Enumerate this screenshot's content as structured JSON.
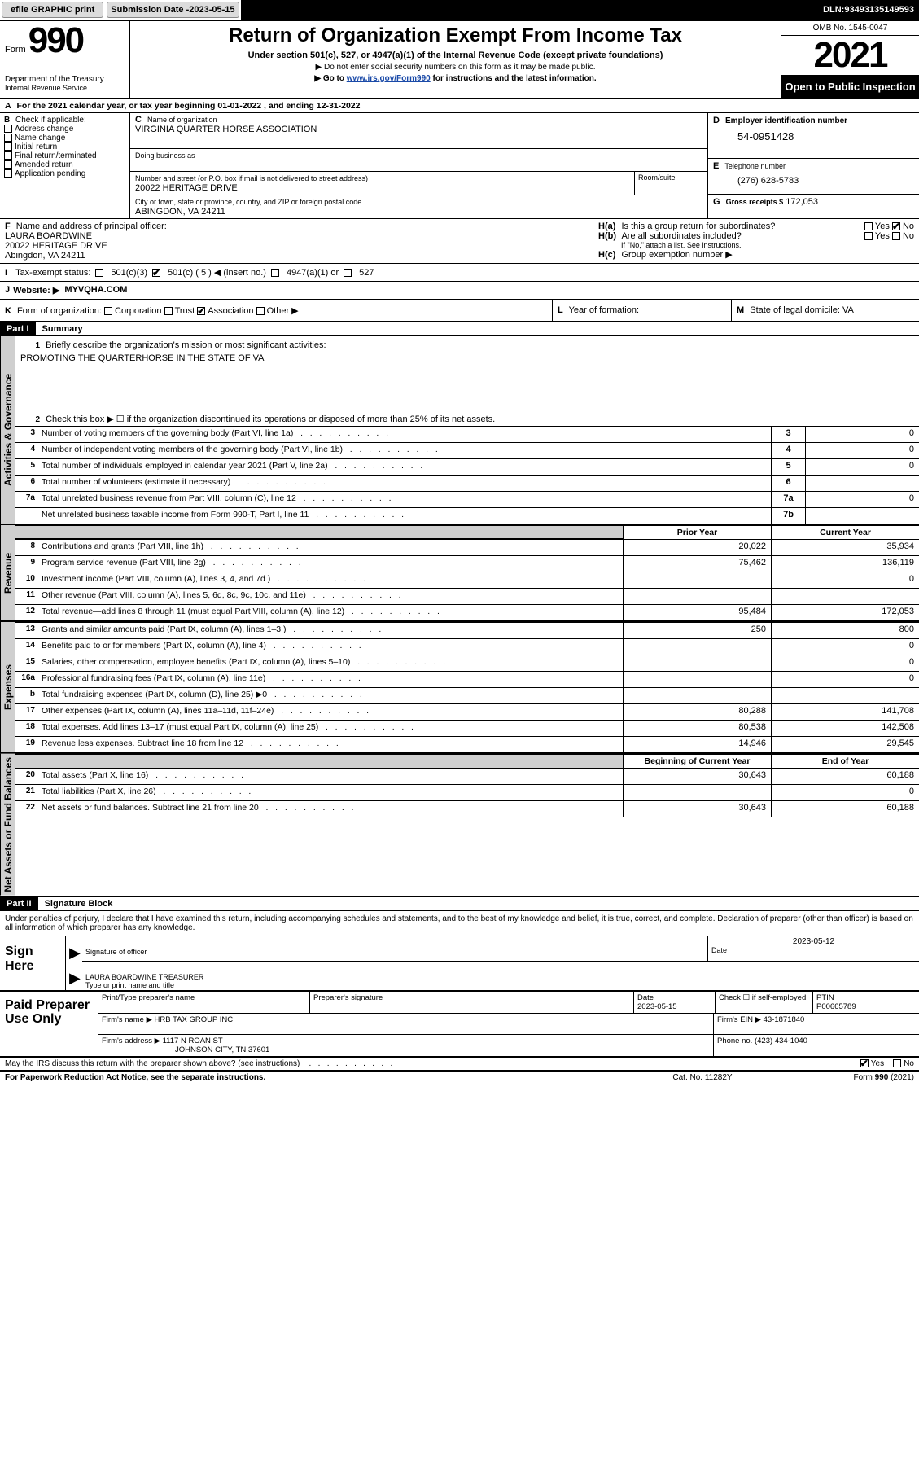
{
  "topbar": {
    "efile": "efile GRAPHIC print",
    "submission_label": "Submission Date - ",
    "submission_date": "2023-05-15",
    "dln_label": "DLN: ",
    "dln": "93493135149593"
  },
  "header": {
    "form_word": "Form",
    "form_num": "990",
    "dept": "Department of the Treasury",
    "irs": "Internal Revenue Service",
    "title": "Return of Organization Exempt From Income Tax",
    "sub1": "Under section 501(c), 527, or 4947(a)(1) of the Internal Revenue Code (except private foundations)",
    "sub2": "▶ Do not enter social security numbers on this form as it may be made public.",
    "sub3_pre": "▶ Go to ",
    "sub3_link": "www.irs.gov/Form990",
    "sub3_post": " for instructions and the latest information.",
    "omb": "OMB No. 1545-0047",
    "year": "2021",
    "otp": "Open to Public Inspection"
  },
  "period": {
    "text_pre": "For the 2021 calendar year, or tax year beginning ",
    "begin": "01-01-2022",
    "mid": "  , and ending ",
    "end": "12-31-2022"
  },
  "boxB": {
    "label": "Check if applicable:",
    "opts": [
      "Address change",
      "Name change",
      "Initial return",
      "Final return/terminated",
      "Amended return",
      "Application pending"
    ]
  },
  "org": {
    "name_label": "Name of organization",
    "name": "VIRGINIA QUARTER HORSE ASSOCIATION",
    "dba_label": "Doing business as",
    "dba": "",
    "addr_label": "Number and street (or P.O. box if mail is not delivered to street address)",
    "addr": "20022 HERITAGE DRIVE",
    "room_label": "Room/suite",
    "city_label": "City or town, state or province, country, and ZIP or foreign postal code",
    "city": "ABINGDON, VA  24211"
  },
  "boxD": {
    "label": "Employer identification number",
    "val": "54-0951428"
  },
  "boxE": {
    "label": "Telephone number",
    "val": "(276) 628-5783"
  },
  "boxG": {
    "label": "Gross receipts $",
    "val": "172,053"
  },
  "boxF": {
    "label": "Name and address of principal officer:",
    "l1": "LAURA BOARDWINE",
    "l2": "20022 HERITAGE DRIVE",
    "l3": "Abingdon, VA  24211"
  },
  "boxH": {
    "a": "Is this a group return for subordinates?",
    "b": "Are all subordinates included?",
    "ifno": "If \"No,\" attach a list. See instructions.",
    "c": "Group exemption number ▶",
    "a_no": true
  },
  "boxI": {
    "label": "Tax-exempt status:",
    "c3": "501(c)(3)",
    "c": "501(c) ( 5 ) ◀ (insert no.)",
    "c_checked": true,
    "a1": "4947(a)(1) or",
    "527": "527"
  },
  "boxJ": {
    "label": "Website: ▶",
    "val": "MYVQHA.COM"
  },
  "boxK": {
    "label": "Form of organization:",
    "opts": [
      "Corporation",
      "Trust",
      "Association",
      "Other ▶"
    ],
    "checked_index": 2
  },
  "boxL": {
    "label": "Year of formation:",
    "val": ""
  },
  "boxM": {
    "label": "State of legal domicile:",
    "val": "VA"
  },
  "partI": {
    "hdr": "Part I",
    "title": "Summary"
  },
  "summary": {
    "q1": "Briefly describe the organization's mission or most significant activities:",
    "mission": "PROMOTING THE QUARTERHORSE IN THE STATE OF VA",
    "q2": "Check this box ▶ ☐  if the organization discontinued its operations or disposed of more than 25% of its net assets.",
    "lines_gov": [
      {
        "n": "3",
        "t": "Number of voting members of the governing body (Part VI, line 1a)",
        "box": "3",
        "v": "0"
      },
      {
        "n": "4",
        "t": "Number of independent voting members of the governing body (Part VI, line 1b)",
        "box": "4",
        "v": "0"
      },
      {
        "n": "5",
        "t": "Total number of individuals employed in calendar year 2021 (Part V, line 2a)",
        "box": "5",
        "v": "0"
      },
      {
        "n": "6",
        "t": "Total number of volunteers (estimate if necessary)",
        "box": "6",
        "v": ""
      },
      {
        "n": "7a",
        "t": "Total unrelated business revenue from Part VIII, column (C), line 12",
        "box": "7a",
        "v": "0"
      },
      {
        "n": "",
        "t": "Net unrelated business taxable income from Form 990-T, Part I, line 11",
        "box": "7b",
        "v": ""
      }
    ],
    "col_prior": "Prior Year",
    "col_current": "Current Year",
    "revenue": [
      {
        "n": "8",
        "t": "Contributions and grants (Part VIII, line 1h)",
        "p": "20,022",
        "c": "35,934"
      },
      {
        "n": "9",
        "t": "Program service revenue (Part VIII, line 2g)",
        "p": "75,462",
        "c": "136,119"
      },
      {
        "n": "10",
        "t": "Investment income (Part VIII, column (A), lines 3, 4, and 7d )",
        "p": "",
        "c": "0"
      },
      {
        "n": "11",
        "t": "Other revenue (Part VIII, column (A), lines 5, 6d, 8c, 9c, 10c, and 11e)",
        "p": "",
        "c": ""
      },
      {
        "n": "12",
        "t": "Total revenue—add lines 8 through 11 (must equal Part VIII, column (A), line 12)",
        "p": "95,484",
        "c": "172,053"
      }
    ],
    "expenses": [
      {
        "n": "13",
        "t": "Grants and similar amounts paid (Part IX, column (A), lines 1–3 )",
        "p": "250",
        "c": "800"
      },
      {
        "n": "14",
        "t": "Benefits paid to or for members (Part IX, column (A), line 4)",
        "p": "",
        "c": "0"
      },
      {
        "n": "15",
        "t": "Salaries, other compensation, employee benefits (Part IX, column (A), lines 5–10)",
        "p": "",
        "c": "0"
      },
      {
        "n": "16a",
        "t": "Professional fundraising fees (Part IX, column (A), line 11e)",
        "p": "",
        "c": "0"
      },
      {
        "n": "b",
        "t": "Total fundraising expenses (Part IX, column (D), line 25) ▶0",
        "p": "__shade__",
        "c": "__shade__"
      },
      {
        "n": "17",
        "t": "Other expenses (Part IX, column (A), lines 11a–11d, 11f–24e)",
        "p": "80,288",
        "c": "141,708"
      },
      {
        "n": "18",
        "t": "Total expenses. Add lines 13–17 (must equal Part IX, column (A), line 25)",
        "p": "80,538",
        "c": "142,508"
      },
      {
        "n": "19",
        "t": "Revenue less expenses. Subtract line 18 from line 12",
        "p": "14,946",
        "c": "29,545"
      }
    ],
    "col_boy": "Beginning of Current Year",
    "col_eoy": "End of Year",
    "netassets": [
      {
        "n": "20",
        "t": "Total assets (Part X, line 16)",
        "p": "30,643",
        "c": "60,188"
      },
      {
        "n": "21",
        "t": "Total liabilities (Part X, line 26)",
        "p": "",
        "c": "0"
      },
      {
        "n": "22",
        "t": "Net assets or fund balances. Subtract line 21 from line 20",
        "p": "30,643",
        "c": "60,188"
      }
    ]
  },
  "partII": {
    "hdr": "Part II",
    "title": "Signature Block"
  },
  "sig": {
    "jurat": "Under penalties of perjury, I declare that I have examined this return, including accompanying schedules and statements, and to the best of my knowledge and belief, it is true, correct, and complete. Declaration of preparer (other than officer) is based on all information of which preparer has any knowledge.",
    "sign_here": "Sign Here",
    "sig_label": "Signature of officer",
    "date_label": "Date",
    "date_val": "2023-05-12",
    "name_title": "LAURA BOARDWINE  TREASURER",
    "name_label": "Type or print name and title"
  },
  "paid": {
    "label": "Paid Preparer Use Only",
    "h_name": "Print/Type preparer's name",
    "h_sig": "Preparer's signature",
    "h_date": "Date",
    "date": "2023-05-15",
    "h_self": "Check ☐ if self-employed",
    "h_ptin": "PTIN",
    "ptin": "P00665789",
    "firm_name_l": "Firm's name   ▶",
    "firm_name": "HRB TAX GROUP INC",
    "firm_ein_l": "Firm's EIN ▶",
    "firm_ein": "43-1871840",
    "firm_addr_l": "Firm's address ▶",
    "firm_addr1": "1117 N ROAN ST",
    "firm_addr2": "JOHNSON CITY, TN  37601",
    "phone_l": "Phone no.",
    "phone": "(423) 434-1040"
  },
  "discuss": {
    "q": "May the IRS discuss this return with the preparer shown above? (see instructions)",
    "yes_checked": true
  },
  "footer": {
    "pra": "For Paperwork Reduction Act Notice, see the separate instructions.",
    "cat": "Cat. No. 11282Y",
    "form": "Form 990 (2021)"
  },
  "letters": {
    "A": "A",
    "B": "B",
    "C": "C",
    "D": "D",
    "E": "E",
    "F": "F",
    "G": "G",
    "H_a": "H(a)",
    "H_b": "H(b)",
    "H_c": "H(c)",
    "I": "I",
    "J": "J",
    "K": "K",
    "L": "L",
    "M": "M"
  },
  "vtabs": {
    "gov": "Activities & Governance",
    "rev": "Revenue",
    "exp": "Expenses",
    "net": "Net Assets or Fund Balances"
  },
  "yesno": {
    "yes": "Yes",
    "no": "No"
  }
}
